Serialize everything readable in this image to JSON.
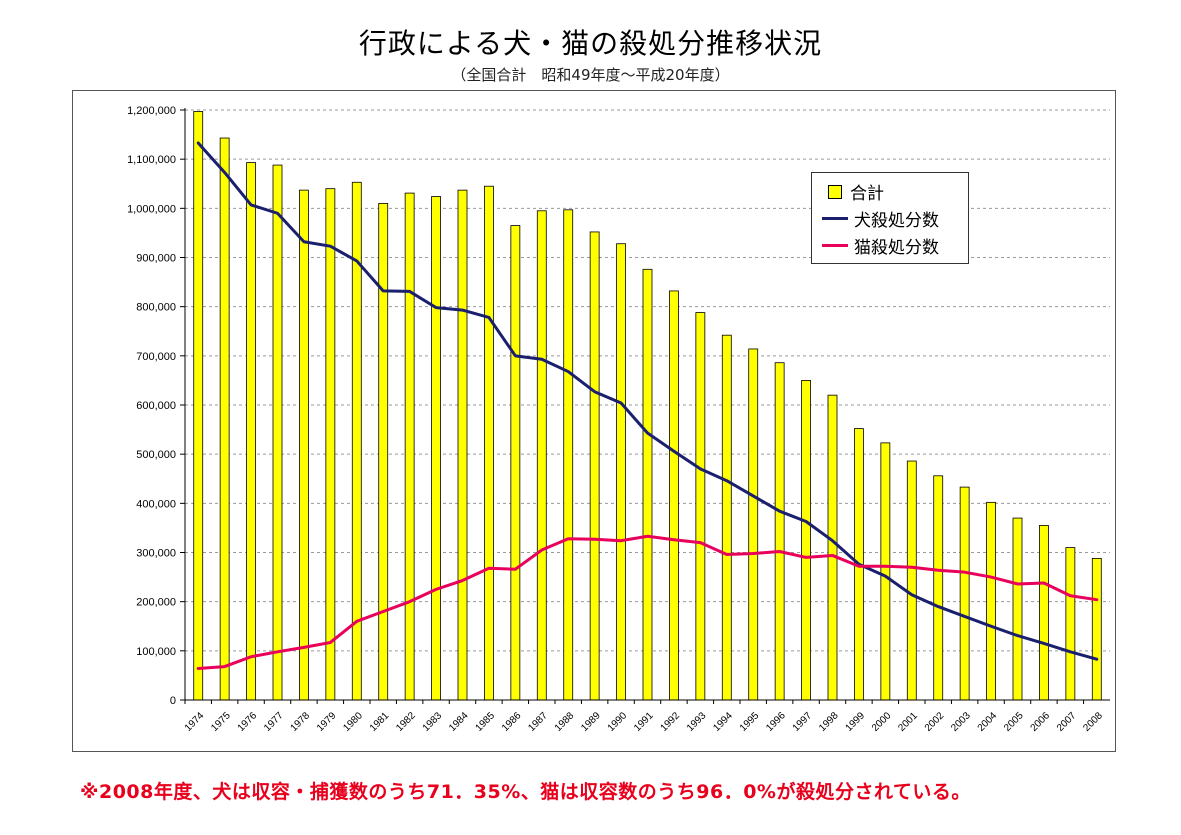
{
  "chart_data": {
    "type": "bar",
    "title": "行政による犬・猫の殺処分推移状況",
    "subtitle": "（全国合計　昭和49年度～平成20年度）",
    "categories": [
      "1974",
      "1975",
      "1976",
      "1977",
      "1978",
      "1979",
      "1980",
      "1981",
      "1982",
      "1983",
      "1984",
      "1985",
      "1986",
      "1987",
      "1988",
      "1989",
      "1990",
      "1991",
      "1992",
      "1993",
      "1994",
      "1995",
      "1996",
      "1997",
      "1998",
      "1999",
      "2000",
      "2001",
      "2002",
      "2003",
      "2004",
      "2005",
      "2006",
      "2007",
      "2008"
    ],
    "ylim": [
      0,
      1200000
    ],
    "yticks": [
      "0",
      "100,000",
      "200,000",
      "300,000",
      "400,000",
      "500,000",
      "600,000",
      "700,000",
      "800,000",
      "900,000",
      "1,000,000",
      "1,100,000",
      "1,200,000"
    ],
    "ytick_values": [
      0,
      100000,
      200000,
      300000,
      400000,
      500000,
      600000,
      700000,
      800000,
      900000,
      1000000,
      1100000,
      1200000
    ],
    "series": [
      {
        "name": "合計",
        "type": "bar",
        "color": "#ffff00",
        "values": [
          1197000,
          1143000,
          1093000,
          1088000,
          1037000,
          1040000,
          1053000,
          1010000,
          1031000,
          1024000,
          1037000,
          1045000,
          965000,
          995000,
          997000,
          952000,
          928000,
          876000,
          832000,
          788000,
          742000,
          714000,
          686000,
          650000,
          620000,
          552000,
          523000,
          486000,
          456000,
          433000,
          402000,
          370000,
          355000,
          310000,
          288000
        ]
      },
      {
        "name": "犬殺処分数",
        "type": "line",
        "color": "#1a1f6e",
        "values": [
          1133000,
          1073000,
          1007000,
          990000,
          932000,
          923000,
          893000,
          832000,
          831000,
          798000,
          793000,
          778000,
          700000,
          693000,
          668000,
          627000,
          604000,
          543000,
          506000,
          470000,
          446000,
          415000,
          384000,
          363000,
          324000,
          276000,
          252000,
          214000,
          190000,
          170000,
          150000,
          131000,
          115000,
          98000,
          83000
        ]
      },
      {
        "name": "猫殺処分数",
        "type": "line",
        "color": "#e8005a",
        "values": [
          64000,
          68000,
          88000,
          98000,
          107000,
          117000,
          160000,
          180000,
          200000,
          225000,
          243000,
          268000,
          266000,
          305000,
          328000,
          327000,
          324000,
          333000,
          326000,
          320000,
          296000,
          298000,
          302000,
          290000,
          294000,
          272000,
          272000,
          270000,
          264000,
          260000,
          250000,
          236000,
          238000,
          212000,
          204000
        ]
      }
    ],
    "legend": [
      "合計",
      "犬殺処分数",
      "猫殺処分数"
    ],
    "legend_position": "top-right",
    "grid": true,
    "note": "※2008年度、犬は収容・捕獲数のうち71．35%、猫は収容数のうち96．0%が殺処分されている。"
  }
}
